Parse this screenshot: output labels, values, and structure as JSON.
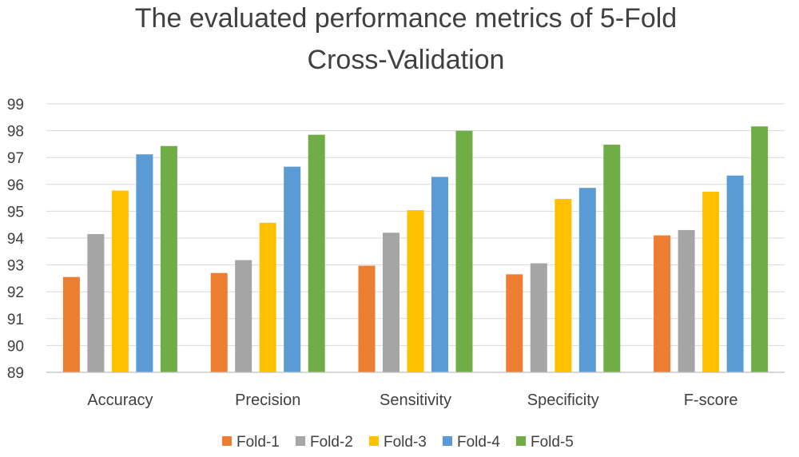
{
  "chart_data": {
    "type": "bar",
    "title": "The evaluated performance metrics of 5-Fold Cross-Validation",
    "title_lines": [
      "The evaluated performance metrics of 5-Fold",
      "Cross-Validation"
    ],
    "xlabel": "",
    "ylabel": "",
    "ylim": [
      89,
      99
    ],
    "yticks": [
      89,
      90,
      91,
      92,
      93,
      94,
      95,
      96,
      97,
      98,
      99
    ],
    "grid": true,
    "legend_position": "bottom",
    "categories": [
      "Accuracy",
      "Precision",
      "Sensitivity",
      "Specificity",
      "F-score"
    ],
    "series": [
      {
        "name": "Fold-1",
        "color": "#ED7D31",
        "values": [
          92.55,
          92.7,
          92.97,
          92.65,
          94.1
        ]
      },
      {
        "name": "Fold-2",
        "color": "#A5A5A5",
        "values": [
          94.15,
          93.18,
          94.2,
          93.06,
          94.3
        ]
      },
      {
        "name": "Fold-3",
        "color": "#FFC000",
        "values": [
          95.77,
          94.57,
          95.04,
          95.46,
          95.73
        ]
      },
      {
        "name": "Fold-4",
        "color": "#5B9BD5",
        "values": [
          97.12,
          96.66,
          96.28,
          95.87,
          96.33
        ]
      },
      {
        "name": "Fold-5",
        "color": "#70AD47",
        "values": [
          97.43,
          97.85,
          98.0,
          97.48,
          98.16
        ]
      }
    ]
  }
}
